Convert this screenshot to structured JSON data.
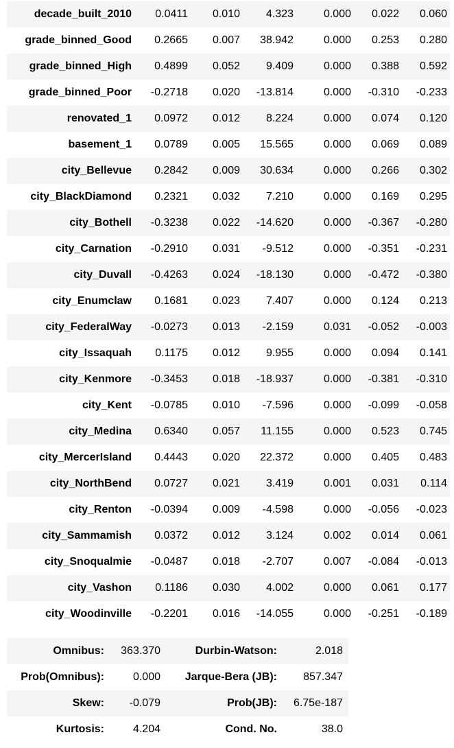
{
  "coefficients": [
    {
      "name": "decade_built_2010",
      "coef": "0.0411",
      "std_err": "0.010",
      "t": "4.323",
      "p": "0.000",
      "ci_low": "0.022",
      "ci_high": "0.060"
    },
    {
      "name": "grade_binned_Good",
      "coef": "0.2665",
      "std_err": "0.007",
      "t": "38.942",
      "p": "0.000",
      "ci_low": "0.253",
      "ci_high": "0.280"
    },
    {
      "name": "grade_binned_High",
      "coef": "0.4899",
      "std_err": "0.052",
      "t": "9.409",
      "p": "0.000",
      "ci_low": "0.388",
      "ci_high": "0.592"
    },
    {
      "name": "grade_binned_Poor",
      "coef": "-0.2718",
      "std_err": "0.020",
      "t": "-13.814",
      "p": "0.000",
      "ci_low": "-0.310",
      "ci_high": "-0.233"
    },
    {
      "name": "renovated_1",
      "coef": "0.0972",
      "std_err": "0.012",
      "t": "8.224",
      "p": "0.000",
      "ci_low": "0.074",
      "ci_high": "0.120"
    },
    {
      "name": "basement_1",
      "coef": "0.0789",
      "std_err": "0.005",
      "t": "15.565",
      "p": "0.000",
      "ci_low": "0.069",
      "ci_high": "0.089"
    },
    {
      "name": "city_Bellevue",
      "coef": "0.2842",
      "std_err": "0.009",
      "t": "30.634",
      "p": "0.000",
      "ci_low": "0.266",
      "ci_high": "0.302"
    },
    {
      "name": "city_BlackDiamond",
      "coef": "0.2321",
      "std_err": "0.032",
      "t": "7.210",
      "p": "0.000",
      "ci_low": "0.169",
      "ci_high": "0.295"
    },
    {
      "name": "city_Bothell",
      "coef": "-0.3238",
      "std_err": "0.022",
      "t": "-14.620",
      "p": "0.000",
      "ci_low": "-0.367",
      "ci_high": "-0.280"
    },
    {
      "name": "city_Carnation",
      "coef": "-0.2910",
      "std_err": "0.031",
      "t": "-9.512",
      "p": "0.000",
      "ci_low": "-0.351",
      "ci_high": "-0.231"
    },
    {
      "name": "city_Duvall",
      "coef": "-0.4263",
      "std_err": "0.024",
      "t": "-18.130",
      "p": "0.000",
      "ci_low": "-0.472",
      "ci_high": "-0.380"
    },
    {
      "name": "city_Enumclaw",
      "coef": "0.1681",
      "std_err": "0.023",
      "t": "7.407",
      "p": "0.000",
      "ci_low": "0.124",
      "ci_high": "0.213"
    },
    {
      "name": "city_FederalWay",
      "coef": "-0.0273",
      "std_err": "0.013",
      "t": "-2.159",
      "p": "0.031",
      "ci_low": "-0.052",
      "ci_high": "-0.003"
    },
    {
      "name": "city_Issaquah",
      "coef": "0.1175",
      "std_err": "0.012",
      "t": "9.955",
      "p": "0.000",
      "ci_low": "0.094",
      "ci_high": "0.141"
    },
    {
      "name": "city_Kenmore",
      "coef": "-0.3453",
      "std_err": "0.018",
      "t": "-18.937",
      "p": "0.000",
      "ci_low": "-0.381",
      "ci_high": "-0.310"
    },
    {
      "name": "city_Kent",
      "coef": "-0.0785",
      "std_err": "0.010",
      "t": "-7.596",
      "p": "0.000",
      "ci_low": "-0.099",
      "ci_high": "-0.058"
    },
    {
      "name": "city_Medina",
      "coef": "0.6340",
      "std_err": "0.057",
      "t": "11.155",
      "p": "0.000",
      "ci_low": "0.523",
      "ci_high": "0.745"
    },
    {
      "name": "city_MercerIsland",
      "coef": "0.4443",
      "std_err": "0.020",
      "t": "22.372",
      "p": "0.000",
      "ci_low": "0.405",
      "ci_high": "0.483"
    },
    {
      "name": "city_NorthBend",
      "coef": "0.0727",
      "std_err": "0.021",
      "t": "3.419",
      "p": "0.001",
      "ci_low": "0.031",
      "ci_high": "0.114"
    },
    {
      "name": "city_Renton",
      "coef": "-0.0394",
      "std_err": "0.009",
      "t": "-4.598",
      "p": "0.000",
      "ci_low": "-0.056",
      "ci_high": "-0.023"
    },
    {
      "name": "city_Sammamish",
      "coef": "0.0372",
      "std_err": "0.012",
      "t": "3.124",
      "p": "0.002",
      "ci_low": "0.014",
      "ci_high": "0.061"
    },
    {
      "name": "city_Snoqualmie",
      "coef": "-0.0487",
      "std_err": "0.018",
      "t": "-2.707",
      "p": "0.007",
      "ci_low": "-0.084",
      "ci_high": "-0.013"
    },
    {
      "name": "city_Vashon",
      "coef": "0.1186",
      "std_err": "0.030",
      "t": "4.002",
      "p": "0.000",
      "ci_low": "0.061",
      "ci_high": "0.177"
    },
    {
      "name": "city_Woodinville",
      "coef": "-0.2201",
      "std_err": "0.016",
      "t": "-14.055",
      "p": "0.000",
      "ci_low": "-0.251",
      "ci_high": "-0.189"
    }
  ],
  "diagnostics": [
    {
      "label1": "Omnibus:",
      "value1": "363.370",
      "label2": "Durbin-Watson:",
      "value2": "2.018"
    },
    {
      "label1": "Prob(Omnibus):",
      "value1": "0.000",
      "label2": "Jarque-Bera (JB):",
      "value2": "857.347"
    },
    {
      "label1": "Skew:",
      "value1": "-0.079",
      "label2": "Prob(JB):",
      "value2": "6.75e-187"
    },
    {
      "label1": "Kurtosis:",
      "value1": "4.204",
      "label2": "Cond. No.",
      "value2": "38.0"
    }
  ],
  "colors": {
    "stripe": "#f5f5f5",
    "background": "#ffffff",
    "text": "#000000"
  }
}
